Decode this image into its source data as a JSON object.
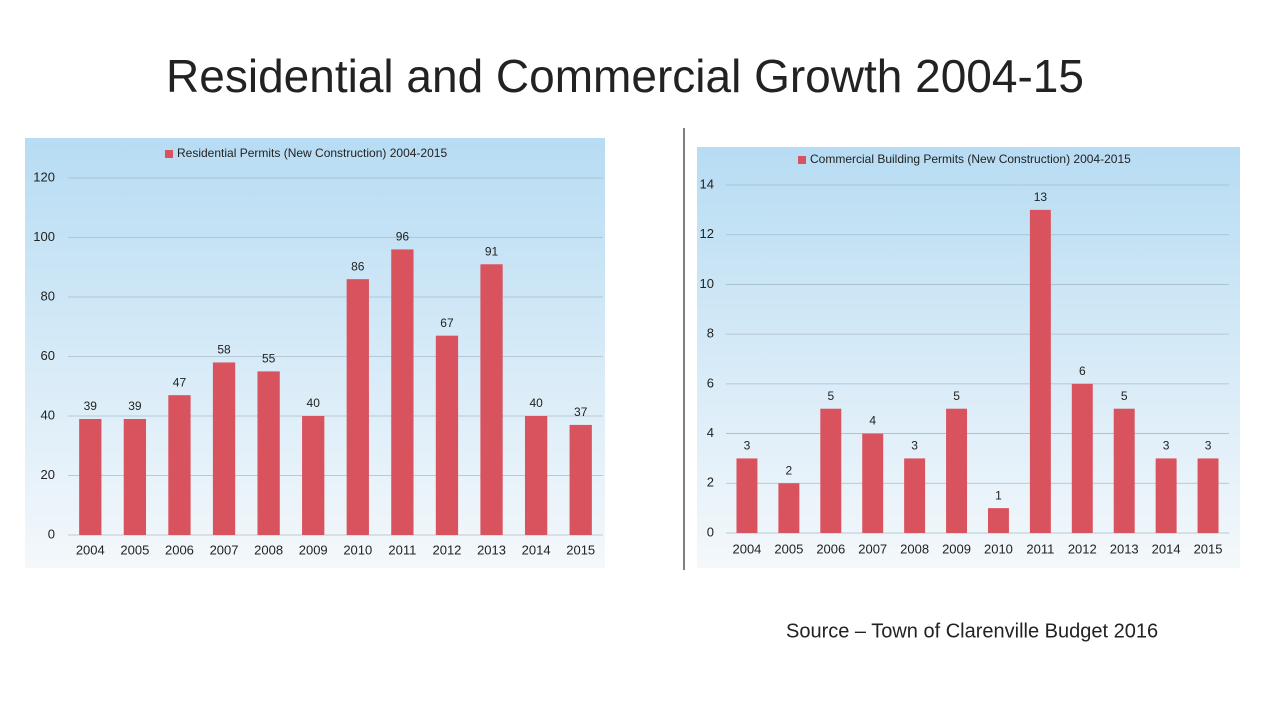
{
  "title": "Residential and Commercial Growth 2004-15",
  "source": "Source – Town of Clarenville Budget 2016",
  "chart_data": [
    {
      "type": "bar",
      "categories": [
        "2004",
        "2005",
        "2006",
        "2007",
        "2008",
        "2009",
        "2010",
        "2011",
        "2012",
        "2013",
        "2014",
        "2015"
      ],
      "series": [
        {
          "name": "Residential Permits (New Construction) 2004-2015",
          "color": "#d9535f",
          "values": [
            39,
            39,
            47,
            58,
            55,
            40,
            86,
            96,
            67,
            91,
            40,
            37
          ]
        }
      ],
      "ylim": [
        0,
        120
      ],
      "yticks": [
        0,
        20,
        40,
        60,
        80,
        100,
        120
      ],
      "grid": true
    },
    {
      "type": "bar",
      "categories": [
        "2004",
        "2005",
        "2006",
        "2007",
        "2008",
        "2009",
        "2010",
        "2011",
        "2012",
        "2013",
        "2014",
        "2015"
      ],
      "series": [
        {
          "name": "Commercial Building Permits (New Construction) 2004-2015",
          "color": "#d9535f",
          "values": [
            3,
            2,
            5,
            4,
            3,
            5,
            1,
            13,
            6,
            5,
            3,
            3
          ]
        }
      ],
      "ylim": [
        0,
        14
      ],
      "yticks": [
        0,
        2,
        4,
        6,
        8,
        10,
        12,
        14
      ],
      "grid": true
    }
  ]
}
